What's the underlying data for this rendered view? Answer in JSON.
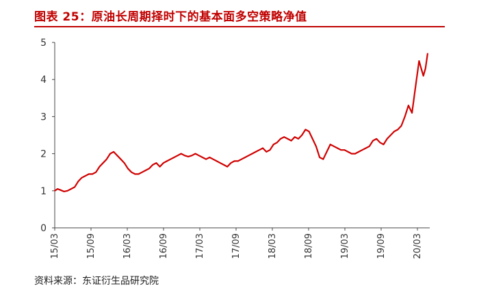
{
  "header": {
    "title": "图表 25：原油长周期择时下的基本面多空策略净值"
  },
  "footer": {
    "source": "资料来源：东证衍生品研究院"
  },
  "colors": {
    "title": "#c00000",
    "series": "#d00000",
    "axis": "#444444"
  },
  "chart_data": {
    "type": "line",
    "title": "图表 25：原油长周期择时下的基本面多空策略净值",
    "xlabel": "",
    "ylabel": "",
    "ylim": [
      0,
      5
    ],
    "yticks": [
      0,
      1,
      2,
      3,
      4,
      5
    ],
    "xticks": [
      "15/03",
      "15/09",
      "16/03",
      "16/09",
      "17/03",
      "17/09",
      "18/03",
      "18/09",
      "19/03",
      "19/09",
      "20/03"
    ],
    "grid": false,
    "legend": "none",
    "series": [
      {
        "values": [
          [
            2015.17,
            1.0
          ],
          [
            2015.21,
            1.05
          ],
          [
            2015.25,
            1.02
          ],
          [
            2015.3,
            0.98
          ],
          [
            2015.35,
            1.0
          ],
          [
            2015.4,
            1.05
          ],
          [
            2015.45,
            1.1
          ],
          [
            2015.5,
            1.25
          ],
          [
            2015.55,
            1.35
          ],
          [
            2015.6,
            1.4
          ],
          [
            2015.65,
            1.45
          ],
          [
            2015.7,
            1.45
          ],
          [
            2015.75,
            1.5
          ],
          [
            2015.8,
            1.65
          ],
          [
            2015.85,
            1.75
          ],
          [
            2015.9,
            1.85
          ],
          [
            2015.95,
            2.0
          ],
          [
            2016.0,
            2.05
          ],
          [
            2016.05,
            1.95
          ],
          [
            2016.1,
            1.85
          ],
          [
            2016.15,
            1.75
          ],
          [
            2016.2,
            1.6
          ],
          [
            2016.25,
            1.5
          ],
          [
            2016.3,
            1.45
          ],
          [
            2016.35,
            1.45
          ],
          [
            2016.4,
            1.5
          ],
          [
            2016.45,
            1.55
          ],
          [
            2016.5,
            1.6
          ],
          [
            2016.55,
            1.7
          ],
          [
            2016.6,
            1.75
          ],
          [
            2016.65,
            1.65
          ],
          [
            2016.7,
            1.75
          ],
          [
            2016.75,
            1.8
          ],
          [
            2016.8,
            1.85
          ],
          [
            2016.85,
            1.9
          ],
          [
            2016.9,
            1.95
          ],
          [
            2016.95,
            2.0
          ],
          [
            2017.0,
            1.95
          ],
          [
            2017.05,
            1.92
          ],
          [
            2017.1,
            1.95
          ],
          [
            2017.15,
            2.0
          ],
          [
            2017.2,
            1.95
          ],
          [
            2017.25,
            1.9
          ],
          [
            2017.3,
            1.85
          ],
          [
            2017.35,
            1.9
          ],
          [
            2017.4,
            1.85
          ],
          [
            2017.45,
            1.8
          ],
          [
            2017.5,
            1.75
          ],
          [
            2017.55,
            1.7
          ],
          [
            2017.6,
            1.65
          ],
          [
            2017.65,
            1.75
          ],
          [
            2017.7,
            1.8
          ],
          [
            2017.75,
            1.8
          ],
          [
            2017.8,
            1.85
          ],
          [
            2017.85,
            1.9
          ],
          [
            2017.9,
            1.95
          ],
          [
            2017.95,
            2.0
          ],
          [
            2018.0,
            2.05
          ],
          [
            2018.05,
            2.1
          ],
          [
            2018.1,
            2.15
          ],
          [
            2018.15,
            2.05
          ],
          [
            2018.2,
            2.1
          ],
          [
            2018.25,
            2.25
          ],
          [
            2018.3,
            2.3
          ],
          [
            2018.35,
            2.4
          ],
          [
            2018.4,
            2.45
          ],
          [
            2018.45,
            2.4
          ],
          [
            2018.5,
            2.35
          ],
          [
            2018.55,
            2.45
          ],
          [
            2018.6,
            2.4
          ],
          [
            2018.65,
            2.5
          ],
          [
            2018.7,
            2.65
          ],
          [
            2018.75,
            2.6
          ],
          [
            2018.8,
            2.4
          ],
          [
            2018.85,
            2.2
          ],
          [
            2018.9,
            1.9
          ],
          [
            2018.95,
            1.85
          ],
          [
            2019.0,
            2.05
          ],
          [
            2019.05,
            2.25
          ],
          [
            2019.1,
            2.2
          ],
          [
            2019.15,
            2.15
          ],
          [
            2019.2,
            2.1
          ],
          [
            2019.25,
            2.1
          ],
          [
            2019.3,
            2.05
          ],
          [
            2019.35,
            2.0
          ],
          [
            2019.4,
            2.0
          ],
          [
            2019.45,
            2.05
          ],
          [
            2019.5,
            2.1
          ],
          [
            2019.55,
            2.15
          ],
          [
            2019.6,
            2.2
          ],
          [
            2019.65,
            2.35
          ],
          [
            2019.7,
            2.4
          ],
          [
            2019.75,
            2.3
          ],
          [
            2019.8,
            2.25
          ],
          [
            2019.85,
            2.4
          ],
          [
            2019.9,
            2.5
          ],
          [
            2019.95,
            2.6
          ],
          [
            2020.0,
            2.65
          ],
          [
            2020.05,
            2.75
          ],
          [
            2020.1,
            3.0
          ],
          [
            2020.15,
            3.3
          ],
          [
            2020.2,
            3.1
          ],
          [
            2020.25,
            3.8
          ],
          [
            2020.3,
            4.5
          ],
          [
            2020.33,
            4.3
          ],
          [
            2020.36,
            4.1
          ],
          [
            2020.39,
            4.3
          ],
          [
            2020.42,
            4.7
          ]
        ]
      }
    ]
  }
}
